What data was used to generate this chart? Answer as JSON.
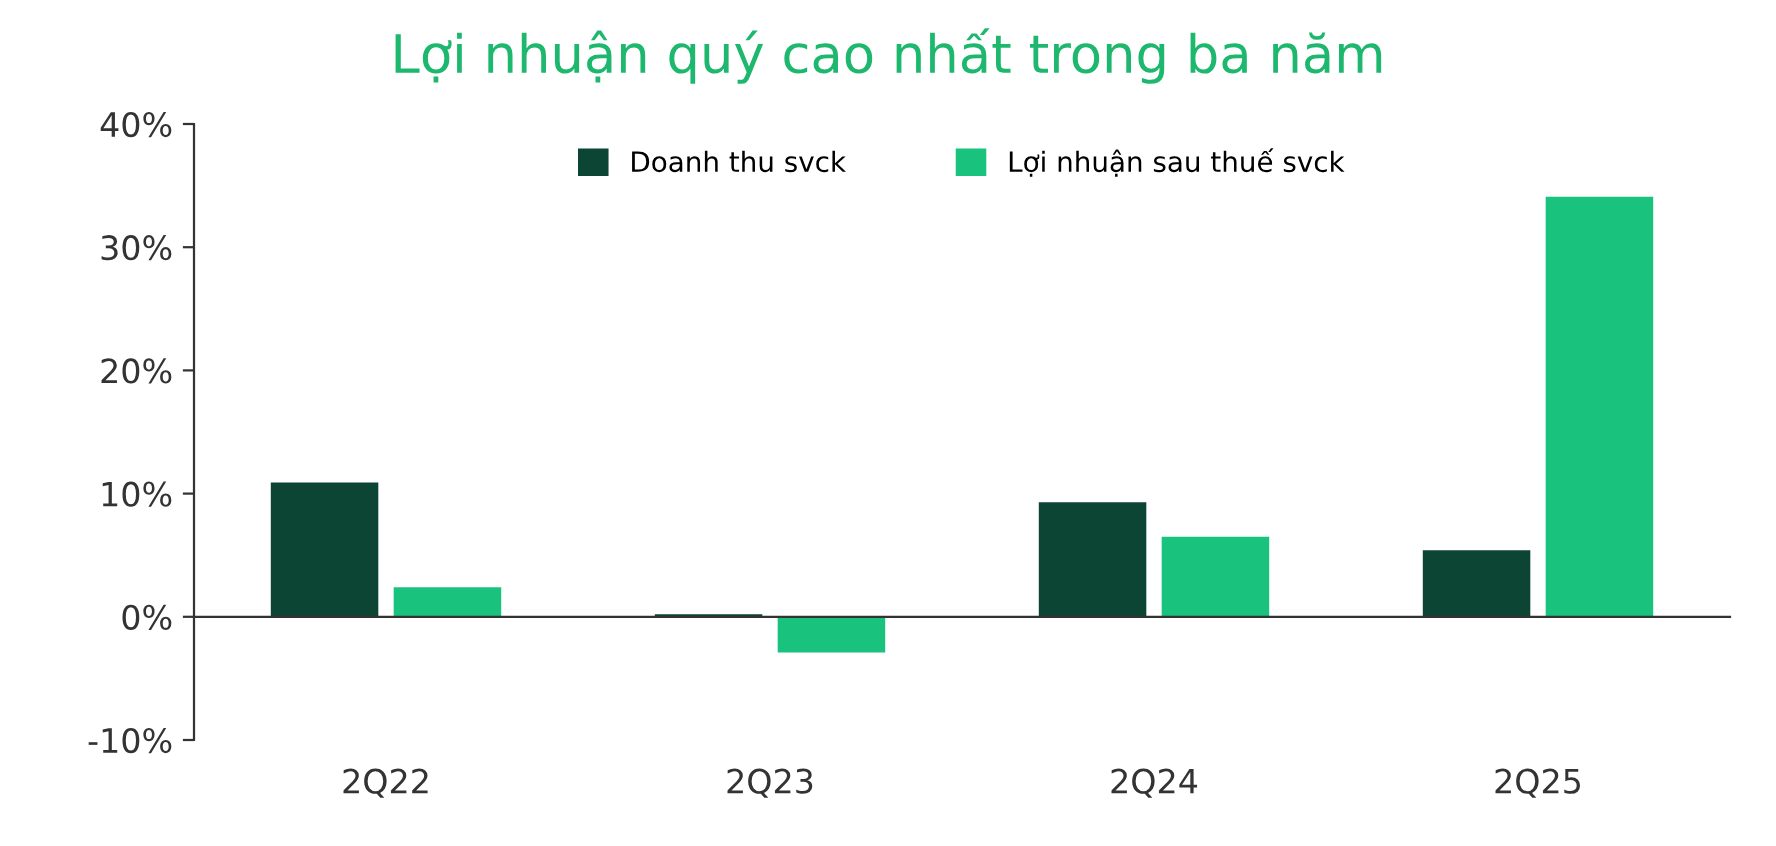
{
  "chart_data": {
    "type": "bar",
    "title": "Lợi nhuận quý cao nhất trong ba năm",
    "categories": [
      "2Q22",
      "2Q23",
      "2Q24",
      "2Q25"
    ],
    "series": [
      {
        "name": "Doanh thu svck",
        "color": "#0d4534",
        "values": [
          10.9,
          0.2,
          9.3,
          5.4
        ]
      },
      {
        "name": "Lợi nhuận sau thuế svck",
        "color": "#19c37d",
        "values": [
          2.4,
          -2.9,
          6.5,
          34.1
        ]
      }
    ],
    "ylim": [
      -10,
      40
    ],
    "yticks": [
      {
        "value": -10,
        "label": "-10%"
      },
      {
        "value": 0,
        "label": "0%"
      },
      {
        "value": 10,
        "label": "10%"
      },
      {
        "value": 20,
        "label": "20%"
      },
      {
        "value": 30,
        "label": "30%"
      },
      {
        "value": 40,
        "label": "40%"
      }
    ],
    "legend": "top"
  }
}
